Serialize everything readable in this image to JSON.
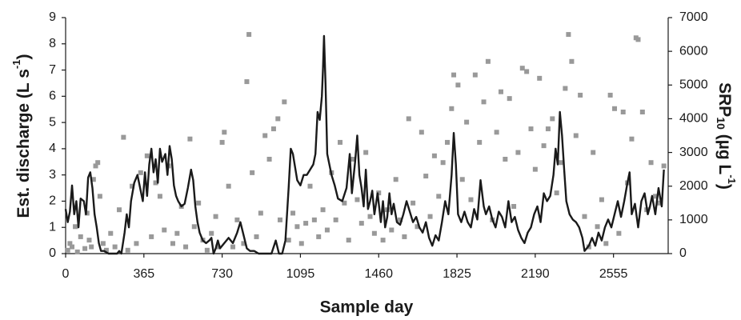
{
  "chart_data": {
    "type": "line",
    "xlabel": "Sample day",
    "ylabel": [
      "Est. discharge (L s",
      "-1",
      ")"
    ],
    "y2label": [
      "SRP",
      "10",
      " (µg L",
      "-1",
      ")"
    ],
    "xlim": [
      0,
      2810
    ],
    "xticks": [
      0,
      365,
      730,
      1095,
      1460,
      1825,
      2190,
      2555
    ],
    "ylim": [
      0,
      9
    ],
    "yticks": [
      0,
      1,
      2,
      3,
      4,
      5,
      6,
      7,
      8,
      9
    ],
    "y2lim": [
      0,
      7000
    ],
    "y2ticks": [
      0,
      1000,
      2000,
      3000,
      4000,
      5000,
      6000,
      7000
    ],
    "series": [
      {
        "type": "line",
        "color": "#1a1a1a",
        "x": [
          0,
          10,
          20,
          30,
          40,
          50,
          60,
          70,
          85,
          95,
          105,
          115,
          125,
          135,
          145,
          155,
          165,
          180,
          200,
          220,
          240,
          250,
          260,
          275,
          285,
          295,
          305,
          320,
          335,
          345,
          360,
          370,
          380,
          390,
          400,
          410,
          420,
          430,
          440,
          450,
          465,
          475,
          485,
          495,
          505,
          515,
          525,
          540,
          555,
          570,
          585,
          595,
          605,
          615,
          625,
          640,
          655,
          670,
          680,
          690,
          700,
          710,
          720,
          740,
          760,
          780,
          800,
          815,
          830,
          845,
          860,
          880,
          900,
          920,
          940,
          960,
          980,
          995,
          1010,
          1025,
          1040,
          1050,
          1060,
          1070,
          1080,
          1095,
          1110,
          1125,
          1140,
          1155,
          1165,
          1175,
          1185,
          1195,
          1200,
          1205,
          1212,
          1220,
          1230,
          1240,
          1255,
          1270,
          1290,
          1310,
          1325,
          1335,
          1350,
          1360,
          1370,
          1380,
          1390,
          1400,
          1410,
          1420,
          1430,
          1440,
          1455,
          1470,
          1480,
          1490,
          1500,
          1510,
          1520,
          1530,
          1545,
          1560,
          1575,
          1590,
          1605,
          1620,
          1635,
          1650,
          1665,
          1680,
          1695,
          1710,
          1725,
          1740,
          1755,
          1770,
          1785,
          1800,
          1810,
          1820,
          1830,
          1845,
          1860,
          1875,
          1890,
          1905,
          1920,
          1935,
          1950,
          1960,
          1975,
          1990,
          2005,
          2020,
          2035,
          2050,
          2065,
          2080,
          2095,
          2110,
          2125,
          2140,
          2155,
          2170,
          2185,
          2200,
          2215,
          2230,
          2245,
          2260,
          2275,
          2285,
          2295,
          2305,
          2315,
          2325,
          2335,
          2350,
          2365,
          2380,
          2395,
          2410,
          2420,
          2440,
          2455,
          2470,
          2485,
          2500,
          2515,
          2530,
          2545,
          2560,
          2575,
          2590,
          2605,
          2620,
          2630,
          2640,
          2655,
          2670,
          2685,
          2700,
          2715,
          2725,
          2735,
          2750,
          2765,
          2780,
          2790
        ],
        "values": [
          1.7,
          1.2,
          1.6,
          2.6,
          1.5,
          2.0,
          1.0,
          2.1,
          2.0,
          1.5,
          2.9,
          3.1,
          2.5,
          1.5,
          1.0,
          0.4,
          0.1,
          0.1,
          0.0,
          0.0,
          0.0,
          0.1,
          0.0,
          0.8,
          1.5,
          1.0,
          2.0,
          2.7,
          3.0,
          2.6,
          2.0,
          3.1,
          2.2,
          3.4,
          4.0,
          3.1,
          3.6,
          2.7,
          4.0,
          3.5,
          3.8,
          3.0,
          4.1,
          3.6,
          2.6,
          2.2,
          2.0,
          1.8,
          1.9,
          2.5,
          3.2,
          2.8,
          1.8,
          1.2,
          0.8,
          0.5,
          0.4,
          0.5,
          0.6,
          0.0,
          0.2,
          0.5,
          0.2,
          0.4,
          0.6,
          0.4,
          0.8,
          1.2,
          0.7,
          0.2,
          0.1,
          0.1,
          0.0,
          0.0,
          0.0,
          0.0,
          0.5,
          0.0,
          0.0,
          0.5,
          2.5,
          4.0,
          3.8,
          3.3,
          2.8,
          2.6,
          3.0,
          3.0,
          3.2,
          3.4,
          3.8,
          5.4,
          5.1,
          6.0,
          7.0,
          8.3,
          6.5,
          3.8,
          3.4,
          3.0,
          2.6,
          2.1,
          2.0,
          2.5,
          3.8,
          2.3,
          3.5,
          4.5,
          3.0,
          2.5,
          1.8,
          3.2,
          1.7,
          2.0,
          2.4,
          1.5,
          2.3,
          1.2,
          2.0,
          1.0,
          1.4,
          2.3,
          1.5,
          1.9,
          1.2,
          1.1,
          1.5,
          2.0,
          1.6,
          1.2,
          1.4,
          1.0,
          0.8,
          1.2,
          0.6,
          0.3,
          0.7,
          0.5,
          1.2,
          2.0,
          1.5,
          3.0,
          4.6,
          3.4,
          1.5,
          1.2,
          1.6,
          1.2,
          1.0,
          1.7,
          1.3,
          2.8,
          1.8,
          1.5,
          1.8,
          1.3,
          1.0,
          1.6,
          1.4,
          1.0,
          2.0,
          1.2,
          1.4,
          0.9,
          0.6,
          0.4,
          0.8,
          1.0,
          1.5,
          1.8,
          1.2,
          2.3,
          2.0,
          2.2,
          3.0,
          4.0,
          3.4,
          5.4,
          4.5,
          3.2,
          2.0,
          1.5,
          1.3,
          1.2,
          1.0,
          0.6,
          0.1,
          0.3,
          0.6,
          0.3,
          0.8,
          0.5,
          1.0,
          1.3,
          1.0,
          1.5,
          2.0,
          1.4,
          2.0,
          2.7,
          3.1,
          1.5,
          1.9,
          1.0,
          2.0,
          2.3,
          1.5,
          1.8,
          2.2,
          1.5,
          2.5,
          1.8,
          3.2
        ]
      },
      {
        "type": "scatter",
        "axis": "y2",
        "color": "#999999",
        "x": [
          10,
          20,
          30,
          45,
          55,
          70,
          90,
          100,
          110,
          120,
          130,
          140,
          150,
          160,
          175,
          190,
          210,
          230,
          250,
          270,
          290,
          310,
          330,
          350,
          380,
          400,
          420,
          440,
          460,
          480,
          500,
          520,
          540,
          560,
          580,
          600,
          620,
          640,
          660,
          680,
          700,
          710,
          730,
          740,
          760,
          780,
          800,
          830,
          845,
          855,
          870,
          890,
          910,
          930,
          950,
          970,
          990,
          1000,
          1020,
          1040,
          1060,
          1080,
          1100,
          1120,
          1140,
          1160,
          1180,
          1200,
          1220,
          1240,
          1260,
          1280,
          1300,
          1320,
          1340,
          1360,
          1380,
          1400,
          1420,
          1440,
          1460,
          1480,
          1500,
          1520,
          1540,
          1560,
          1580,
          1600,
          1620,
          1640,
          1660,
          1680,
          1700,
          1720,
          1740,
          1760,
          1780,
          1800,
          1810,
          1830,
          1850,
          1870,
          1890,
          1910,
          1930,
          1950,
          1970,
          1990,
          2010,
          2030,
          2050,
          2070,
          2090,
          2110,
          2130,
          2150,
          2170,
          2190,
          2210,
          2230,
          2250,
          2270,
          2290,
          2310,
          2330,
          2345,
          2360,
          2380,
          2400,
          2420,
          2440,
          2460,
          2480,
          2500,
          2520,
          2540,
          2560,
          2580,
          2600,
          2620,
          2640,
          2660,
          2670,
          2690,
          2710,
          2730,
          2750,
          2770,
          2790
        ],
        "values": [
          100,
          300,
          200,
          800,
          50,
          500,
          150,
          1200,
          400,
          200,
          2200,
          2600,
          2700,
          1700,
          300,
          100,
          600,
          200,
          1300,
          3450,
          100,
          2000,
          300,
          2400,
          2900,
          500,
          2100,
          1700,
          700,
          2600,
          300,
          600,
          1400,
          200,
          3400,
          800,
          1500,
          400,
          100,
          600,
          1100,
          200,
          3300,
          3600,
          2000,
          200,
          1000,
          300,
          5100,
          6500,
          2400,
          500,
          1200,
          3500,
          2800,
          3700,
          4000,
          1000,
          4500,
          400,
          1200,
          800,
          300,
          900,
          2000,
          1000,
          500,
          1300,
          700,
          2400,
          1000,
          3300,
          1500,
          400,
          2800,
          1600,
          900,
          3000,
          1100,
          600,
          1800,
          400,
          1300,
          700,
          2200,
          1000,
          500,
          4000,
          1500,
          800,
          3600,
          2300,
          1100,
          2900,
          1700,
          2700,
          3300,
          4300,
          5300,
          5000,
          2200,
          3900,
          1600,
          5300,
          3300,
          4500,
          5700,
          1000,
          3600,
          4800,
          2800,
          4600,
          1400,
          3000,
          5500,
          5400,
          3700,
          2500,
          5200,
          3200,
          3700,
          4000,
          1800,
          2700,
          4900,
          6500,
          5700,
          3500,
          4700,
          1100,
          200,
          3000,
          800,
          1600,
          300,
          4700,
          4300,
          600,
          4200,
          2100,
          3400,
          6400,
          6350,
          4200,
          1300,
          2700,
          1700,
          1500,
          2600
        ]
      }
    ]
  }
}
